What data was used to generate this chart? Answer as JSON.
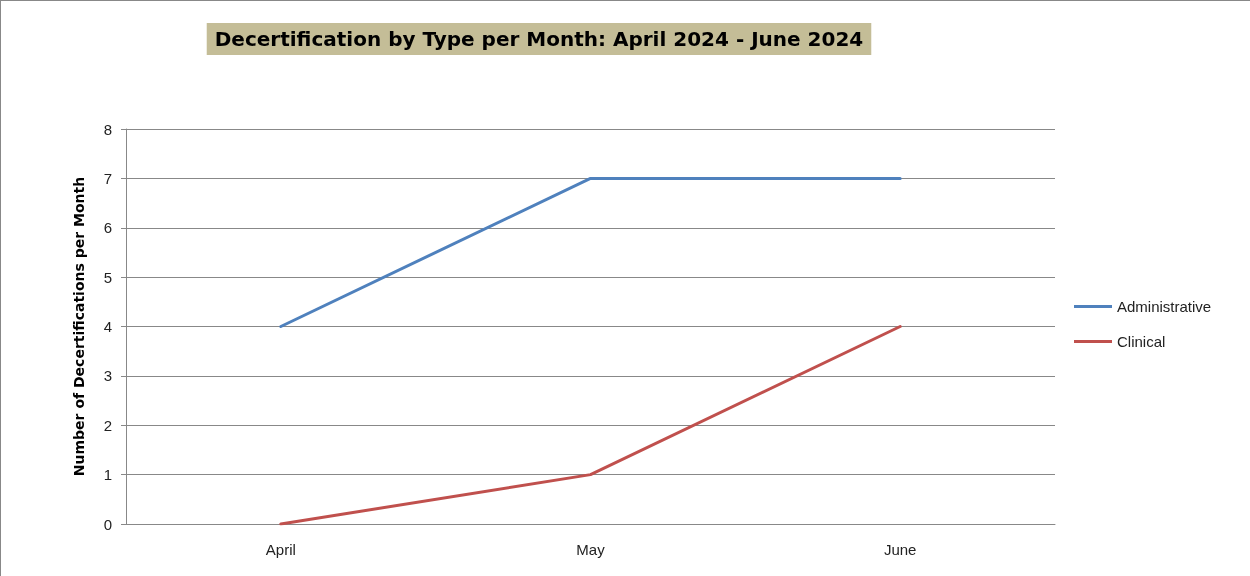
{
  "chart_data": {
    "type": "line",
    "title": "Decertification by Type per Month: April 2024 - June 2024",
    "ylabel": "Number of Decertifications per Month",
    "categories": [
      "April",
      "May",
      "June"
    ],
    "series": [
      {
        "name": "Administrative",
        "color": "#4f81bd",
        "values": [
          4,
          7,
          7
        ]
      },
      {
        "name": "Clinical",
        "color": "#c0504d",
        "values": [
          0,
          1,
          4
        ]
      }
    ],
    "ylim": [
      0,
      8
    ],
    "yticks": [
      0,
      1,
      2,
      3,
      4,
      5,
      6,
      7,
      8
    ],
    "grid": "y",
    "legend": "right",
    "marker": "none",
    "line_style": "solid"
  }
}
